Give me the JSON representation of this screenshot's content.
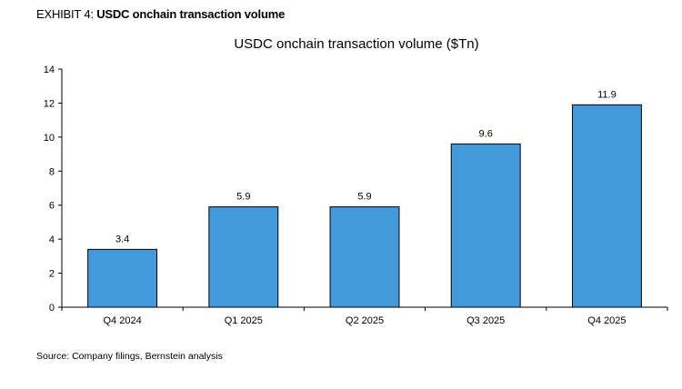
{
  "exhibit": {
    "prefix": "EXHIBIT 4: ",
    "name": "USDC onchain transaction volume"
  },
  "source": "Source: Company filings, Bernstein analysis",
  "colors": {
    "bar": "#4499da",
    "bar_edge": "#000000",
    "axis": "#000000"
  },
  "chart_data": {
    "type": "bar",
    "title": "USDC onchain transaction volume ($Tn)",
    "categories": [
      "Q4 2024",
      "Q1 2025",
      "Q2 2025",
      "Q3 2025",
      "Q4 2025"
    ],
    "values": [
      3.4,
      5.9,
      5.9,
      9.6,
      11.9
    ],
    "data_labels": [
      "3.4",
      "5.9",
      "5.9",
      "9.6",
      "11.9"
    ],
    "ylim": [
      0,
      14
    ],
    "yticks": [
      0,
      2,
      4,
      6,
      8,
      10,
      12,
      14
    ],
    "xlabel": "",
    "ylabel": "",
    "grid": false,
    "legend": "none"
  }
}
